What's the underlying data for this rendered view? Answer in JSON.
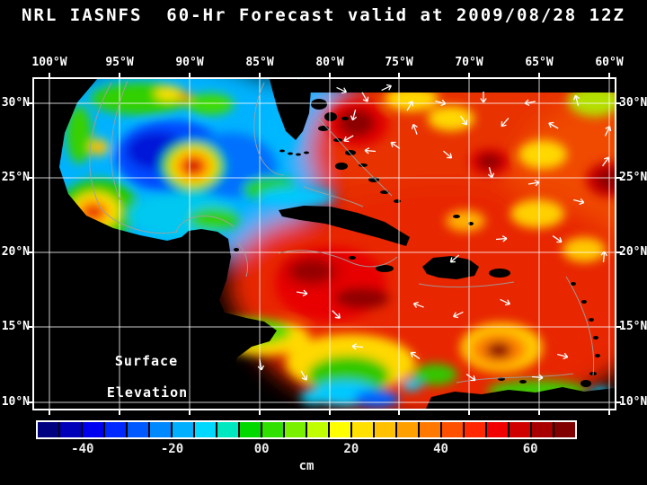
{
  "title": "NRL IASNFS  60-Hr Forecast valid at 2009/08/28 12Z",
  "map": {
    "overlay_labels": [
      "Surface",
      "Elevation"
    ],
    "lon_ticks": [
      "100°W",
      "95°W",
      "90°W",
      "85°W",
      "80°W",
      "75°W",
      "70°W",
      "65°W",
      "60°W"
    ],
    "lat_ticks": [
      "30°N",
      "25°N",
      "20°N",
      "15°N",
      "10°N"
    ]
  },
  "colorbar": {
    "tick_labels": [
      "-40",
      "-20",
      "00",
      "20",
      "40",
      "60"
    ],
    "tick_values": [
      -40,
      -20,
      0,
      20,
      40,
      60
    ],
    "unit_label": "cm",
    "colors": [
      "#000080",
      "#0000b8",
      "#0000f0",
      "#0028ff",
      "#0058ff",
      "#0088ff",
      "#00b0ff",
      "#00d8ff",
      "#00e8c0",
      "#00d800",
      "#30e000",
      "#78f000",
      "#c0ff00",
      "#ffff00",
      "#ffe000",
      "#ffc000",
      "#ffa000",
      "#ff7800",
      "#ff5000",
      "#ff2800",
      "#f00000",
      "#d00000",
      "#a80000",
      "#800000"
    ]
  },
  "chart_data": {
    "type": "heatmap",
    "title": "NRL IASNFS  60-Hr Forecast valid at 2009/08/28 12Z",
    "variable": "Surface Elevation",
    "units": "cm",
    "x_ticks": [
      "100°W",
      "95°W",
      "90°W",
      "85°W",
      "80°W",
      "75°W",
      "70°W",
      "65°W",
      "60°W"
    ],
    "y_ticks": [
      "30°N",
      "25°N",
      "20°N",
      "15°N",
      "10°N"
    ],
    "colorbar": {
      "tick_labels": [
        "-40",
        "-20",
        "00",
        "20",
        "40",
        "60"
      ],
      "tick_values": [
        -40,
        -20,
        0,
        20,
        40,
        60
      ],
      "value_range_cm": [
        -50,
        70
      ],
      "orientation": "horizontal"
    },
    "grid": true,
    "features": [
      "Warm anticyclonic eddy (+40 to +60 cm core) near 88.5W 25.5N in central Gulf of Mexico ringed by green/yellow contours",
      "Low surface elevation (-20 to -40 cm, dark blue) in west-central Gulf of Mexico",
      "Warm feature (+30 cm) near western Gulf coast around 96.5W 22.5N",
      "High surface elevation (+20 to +70 cm, red to dark red) across NW Caribbean, subtropical Atlantic and near Bahamas",
      "Low elevation pool (0 to -20 cm, green/cyan/blue) in SW Caribbean Colombia Basin",
      "High (+60 cm dark red) east of Lesser Antilles near 62W 14.5N",
      "White current/wind vectors concentrated in the open Atlantic north of the Greater Antilles",
      "Gray bathymetry/contour lines along shelves and island arcs",
      "Land masses masked in black; black strip along 31N east of Florida marks domain edge"
    ]
  },
  "art": {
    "top_strip": [
      295,
      0,
      351,
      15
    ],
    "blobs": [
      [
        "base",
        150,
        90,
        175,
        115,
        "#00b2ff"
      ],
      [
        "base",
        300,
        28,
        55,
        38,
        "#00b2ff"
      ],
      [
        "base",
        510,
        80,
        205,
        112,
        "#e83000"
      ],
      [
        "base",
        620,
        140,
        95,
        115,
        "#f04800"
      ],
      [
        "base",
        460,
        250,
        232,
        132,
        "#e82800"
      ],
      [
        "base",
        310,
        228,
        95,
        75,
        "#e82800"
      ],
      [
        "feat",
        118,
        22,
        55,
        18,
        "#30d000"
      ],
      [
        "feat",
        150,
        16,
        16,
        8,
        "#ffe000"
      ],
      [
        "feat",
        196,
        28,
        26,
        12,
        "#40dc00"
      ],
      [
        "feat",
        168,
        20,
        8,
        5,
        "#ff9000"
      ],
      [
        "feat",
        50,
        62,
        14,
        32,
        "#38d000"
      ],
      [
        "feat",
        72,
        76,
        11,
        9,
        "#ffd800"
      ],
      [
        "feat",
        71,
        77,
        5,
        4,
        "#ff8000"
      ],
      [
        "feat",
        272,
        58,
        22,
        30,
        "#00b8ff"
      ],
      [
        "feat",
        152,
        86,
        62,
        40,
        "#0048ff"
      ],
      [
        "feat",
        136,
        80,
        33,
        21,
        "#0014d8"
      ],
      [
        "feat",
        218,
        96,
        52,
        36,
        "#0070ff"
      ],
      [
        "feat",
        177,
        97,
        36,
        29,
        "#00d000"
      ],
      [
        "feat",
        177,
        97,
        27,
        22,
        "#ffe000"
      ],
      [
        "feat",
        177,
        97,
        19,
        15,
        "#ff8800"
      ],
      [
        "feat",
        177,
        97,
        11,
        9,
        "#ee0000"
      ],
      [
        "feat",
        177,
        97,
        5,
        4,
        "#8b0000"
      ],
      [
        "feat",
        72,
        145,
        45,
        34,
        "#28c800"
      ],
      [
        "feat",
        68,
        147,
        27,
        21,
        "#ffe000"
      ],
      [
        "feat",
        66,
        148,
        17,
        13,
        "#ff7800"
      ],
      [
        "feat",
        66,
        148,
        8,
        6,
        "#e00000"
      ],
      [
        "feat",
        165,
        152,
        60,
        26,
        "#00c8f0"
      ],
      [
        "feat",
        200,
        156,
        28,
        13,
        "#30d000"
      ],
      [
        "feat",
        262,
        122,
        30,
        13,
        "#20d000"
      ],
      [
        "feat",
        292,
        131,
        42,
        10,
        "#00c8ff"
      ],
      [
        "feat",
        360,
        50,
        34,
        26,
        "#e00000"
      ],
      [
        "feat",
        359,
        49,
        20,
        15,
        "#8b0000"
      ],
      [
        "feat",
        420,
        22,
        30,
        14,
        "#ffd800"
      ],
      [
        "feat",
        464,
        44,
        26,
        14,
        "#ffd800"
      ],
      [
        "feat",
        624,
        24,
        30,
        18,
        "#b4e000"
      ],
      [
        "feat",
        566,
        84,
        27,
        16,
        "#ffd800"
      ],
      [
        "feat",
        507,
        92,
        23,
        15,
        "#d80000"
      ],
      [
        "feat",
        507,
        92,
        13,
        9,
        "#8b0000"
      ],
      [
        "feat",
        641,
        112,
        27,
        20,
        "#c80000"
      ],
      [
        "feat",
        642,
        112,
        16,
        12,
        "#8b0000"
      ],
      [
        "feat",
        560,
        150,
        30,
        16,
        "#ffd000"
      ],
      [
        "feat",
        480,
        158,
        22,
        12,
        "#ffb000"
      ],
      [
        "feat",
        612,
        190,
        24,
        14,
        "#ffc800"
      ],
      [
        "feat",
        330,
        228,
        62,
        42,
        "#e80000"
      ],
      [
        "feat",
        310,
        214,
        38,
        22,
        "#d80000"
      ],
      [
        "feat",
        309,
        214,
        24,
        13,
        "#960000"
      ],
      [
        "feat",
        365,
        244,
        30,
        12,
        "#900000"
      ],
      [
        "feat",
        255,
        288,
        52,
        20,
        "#ffd800"
      ],
      [
        "feat",
        242,
        281,
        44,
        15,
        "#58d800"
      ],
      [
        "feat",
        352,
        316,
        72,
        32,
        "#ffd800"
      ],
      [
        "feat",
        350,
        330,
        46,
        22,
        "#30c800"
      ],
      [
        "feat",
        346,
        350,
        36,
        14,
        "#00c8ff"
      ],
      [
        "feat",
        381,
        356,
        25,
        10,
        "#0060ff"
      ],
      [
        "feat",
        311,
        354,
        15,
        8,
        "#00d0ff"
      ],
      [
        "feat",
        520,
        299,
        46,
        28,
        "#ffc800"
      ],
      [
        "feat",
        517,
        301,
        30,
        18,
        "#ff8000"
      ],
      [
        "feat",
        517,
        302,
        14,
        9,
        "#8b0000"
      ],
      [
        "feat",
        446,
        329,
        25,
        12,
        "#30c800"
      ],
      [
        "feat",
        420,
        341,
        11,
        6,
        "#00d0ff"
      ],
      [
        "feat",
        560,
        347,
        56,
        12,
        "#40c800"
      ],
      [
        "feat",
        630,
        349,
        11,
        6,
        "#00d0ff"
      ]
    ],
    "land": [
      "0,0 70,0 48,26 34,60 28,98 38,128 58,152 88,166 118,174 148,180 164,176 172,169 186,167 204,170 216,178 219,198 214,224 206,246 212,260 236,266 256,270 270,280 262,292 242,298 226,310 219,328 223,350 236,362 252,358 268,356 282,362 298,367 0,367",
      "436,367 442,354 468,348 498,351 528,346 558,349 588,343 612,348 646,344 646,367",
      "262,0 294,0 308,12 306,38 299,58 291,68 280,58 271,34 265,12",
      "272,146 300,141 330,142 360,149 390,159 418,176 414,186 384,177 354,169 324,161 296,157 276,153",
      "432,209 444,199 464,197 484,201 495,209 490,219 470,223 450,221 437,217"
    ],
    "islands": [
      [
        518,
        216,
        12,
        5
      ],
      [
        390,
        211,
        10,
        4
      ],
      [
        342,
        97,
        7,
        4
      ],
      [
        322,
        55,
        6,
        3
      ],
      [
        338,
        68,
        5,
        2
      ],
      [
        352,
        82,
        6,
        3
      ],
      [
        366,
        96,
        5,
        2
      ],
      [
        378,
        112,
        6,
        3
      ],
      [
        390,
        126,
        5,
        2
      ],
      [
        346,
        44,
        4,
        2
      ],
      [
        404,
        136,
        4,
        2
      ],
      [
        317,
        28,
        9,
        6
      ],
      [
        330,
        42,
        7,
        5
      ],
      [
        470,
        153,
        4,
        2
      ],
      [
        486,
        161,
        3,
        2
      ],
      [
        354,
        199,
        4,
        2
      ],
      [
        600,
        228,
        3,
        2
      ],
      [
        612,
        248,
        3,
        2
      ],
      [
        620,
        268,
        3,
        2
      ],
      [
        625,
        288,
        3,
        2
      ],
      [
        627,
        308,
        3,
        2
      ],
      [
        622,
        328,
        4,
        2
      ],
      [
        614,
        339,
        6,
        4
      ],
      [
        520,
        334,
        4,
        2
      ],
      [
        544,
        337,
        4,
        2
      ],
      [
        225,
        190,
        3,
        2
      ],
      [
        276,
        80,
        3,
        1.5
      ],
      [
        285,
        83,
        3,
        1.5
      ],
      [
        294,
        84,
        3,
        1.5
      ],
      [
        303,
        82,
        3,
        1.5
      ]
    ],
    "contours": [
      "M86,4 C62,48 52,100 74,144 C92,164 128,176 160,170",
      "M104,2 C84,50 78,98 98,140",
      "M256,4 C242,34 240,70 256,94 C263,103 271,107 278,107",
      "M158,170 C166,150 198,146 222,164",
      "M272,194 C300,186 330,194 352,204 C370,212 390,210 404,198",
      "M316,44 C330,58 346,76 360,92 C372,104 386,118 398,130",
      "M592,220 C610,250 626,288 622,330",
      "M470,338 C510,330 560,334 600,328",
      "M428,228 C458,234 498,232 534,226",
      "M226,182 C236,192 240,206 236,220",
      "M300,120 C320,128 344,132 366,142"
    ],
    "arrows": [
      [
        342,
        12,
        25
      ],
      [
        368,
        20,
        60
      ],
      [
        356,
        40,
        105
      ],
      [
        350,
        66,
        150
      ],
      [
        374,
        80,
        185
      ],
      [
        402,
        74,
        215
      ],
      [
        424,
        56,
        250
      ],
      [
        418,
        30,
        300
      ],
      [
        392,
        10,
        335
      ],
      [
        452,
        26,
        15
      ],
      [
        478,
        46,
        55
      ],
      [
        500,
        20,
        90
      ],
      [
        524,
        48,
        130
      ],
      [
        552,
        26,
        170
      ],
      [
        578,
        52,
        210
      ],
      [
        604,
        24,
        255
      ],
      [
        638,
        58,
        295
      ],
      [
        460,
        84,
        40
      ],
      [
        508,
        104,
        75
      ],
      [
        556,
        116,
        350
      ],
      [
        606,
        136,
        15
      ],
      [
        636,
        92,
        305
      ],
      [
        298,
        238,
        10
      ],
      [
        336,
        262,
        45
      ],
      [
        428,
        252,
        200
      ],
      [
        472,
        262,
        155
      ],
      [
        524,
        248,
        25
      ],
      [
        560,
        332,
        5
      ],
      [
        486,
        332,
        35
      ],
      [
        424,
        308,
        215
      ],
      [
        360,
        298,
        185
      ],
      [
        252,
        318,
        80
      ],
      [
        588,
        308,
        15
      ],
      [
        634,
        198,
        275
      ],
      [
        582,
        178,
        35
      ],
      [
        520,
        178,
        355
      ],
      [
        468,
        200,
        140
      ],
      [
        300,
        330,
        60
      ]
    ]
  }
}
